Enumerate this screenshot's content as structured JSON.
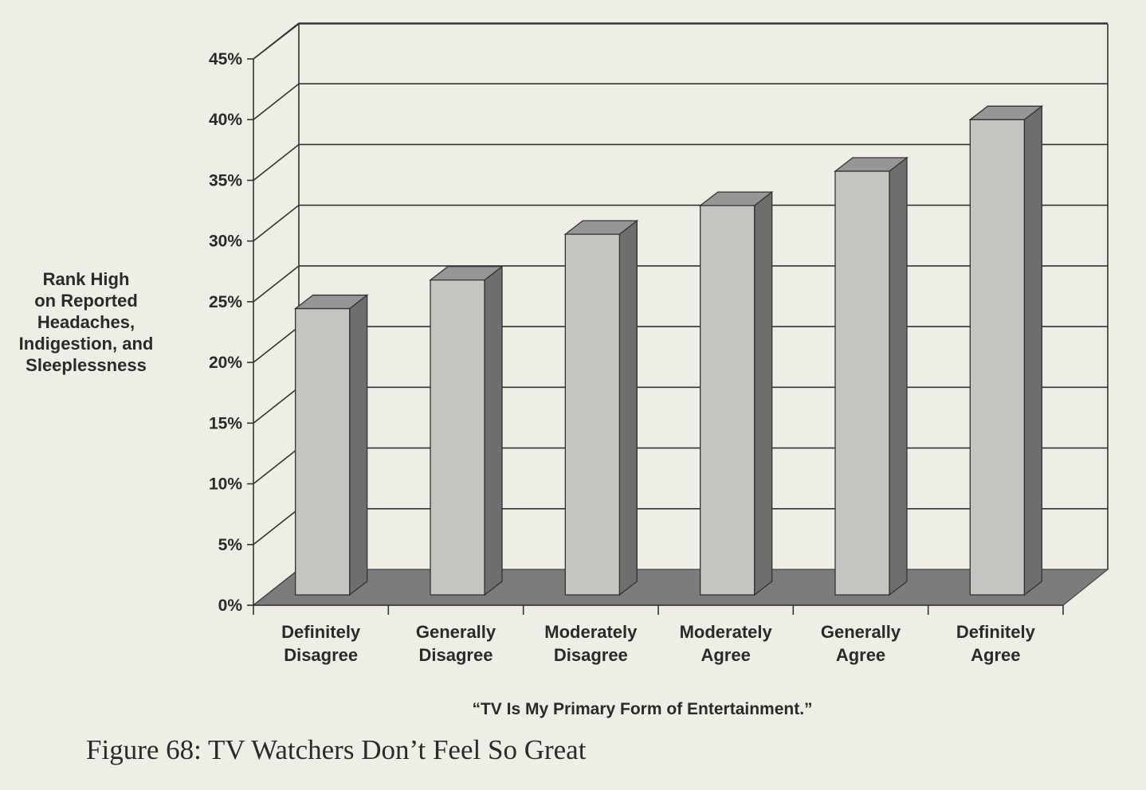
{
  "chart_data": {
    "type": "bar",
    "style": "3d",
    "categories": [
      [
        "Definitely",
        "Disagree"
      ],
      [
        "Generally",
        "Disagree"
      ],
      [
        "Moderately",
        "Disagree"
      ],
      [
        "Moderately",
        "Agree"
      ],
      [
        "Generally",
        "Agree"
      ],
      [
        "Definitely",
        "Agree"
      ]
    ],
    "values": [
      25,
      27.5,
      31.5,
      34,
      37,
      41.5
    ],
    "ylabel": [
      "Rank High",
      "on Reported",
      "Headaches,",
      "Indigestion, and",
      "Sleeplessness"
    ],
    "xlabel": "“TV Is My Primary Form of Entertainment.”",
    "ylim": [
      0,
      45
    ],
    "yticks": [
      0,
      5,
      10,
      15,
      20,
      25,
      30,
      35,
      40,
      45
    ],
    "ytick_labels": [
      "0%",
      "5%",
      "10%",
      "15%",
      "20%",
      "25%",
      "30%",
      "35%",
      "40%",
      "45%"
    ],
    "grid": true
  },
  "caption": "Figure 68: TV Watchers Don’t Feel So Great",
  "colors": {
    "bar_front": "#c4c4c0",
    "bar_side": "#6e6e6e",
    "bar_top": "#969696",
    "floor": "#7c7c7c",
    "grid": "#333333"
  }
}
